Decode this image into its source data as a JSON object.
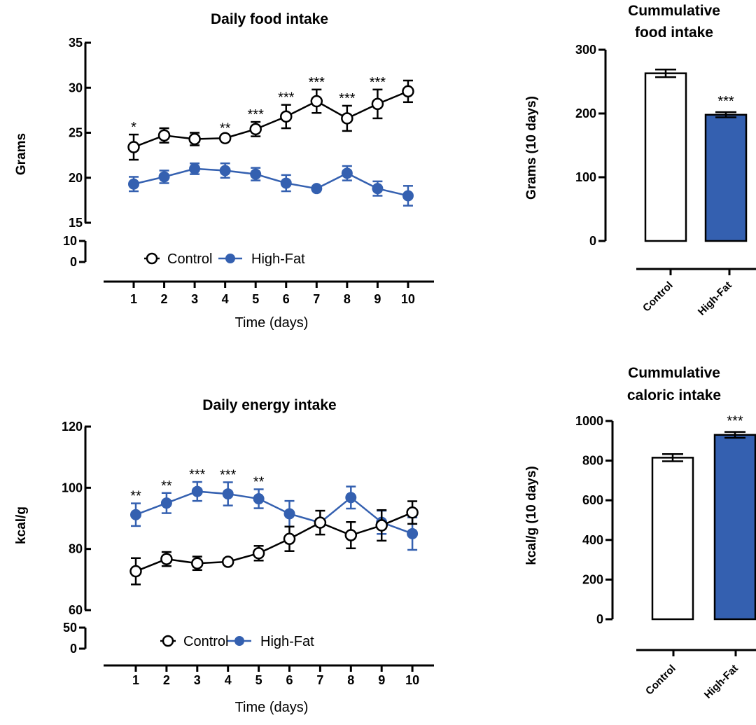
{
  "colors": {
    "control": "#000000",
    "high_fat": "#3460b0",
    "axis": "#000000"
  },
  "chart_data": [
    {
      "type": "line",
      "title": "Daily food intake",
      "xlabel": "Time (days)",
      "ylabel": "Grams",
      "x": [
        1,
        2,
        3,
        4,
        5,
        6,
        7,
        8,
        9,
        10
      ],
      "x_ticks": [
        "1",
        "2",
        "3",
        "4",
        "5",
        "6",
        "7",
        "8",
        "9",
        "10"
      ],
      "y_ticks_main": [
        "15",
        "20",
        "25",
        "30",
        "35"
      ],
      "y_ticks_break": [
        "0",
        "10"
      ],
      "ylim": [
        15,
        35
      ],
      "y_break": [
        0,
        10
      ],
      "series": [
        {
          "name": "Control",
          "marker": "open-circle",
          "values": [
            23.4,
            24.7,
            24.3,
            24.4,
            25.4,
            26.8,
            28.5,
            26.6,
            28.2,
            29.6
          ],
          "errors": [
            1.4,
            0.8,
            0.7,
            0.3,
            0.8,
            1.3,
            1.3,
            1.4,
            1.6,
            1.2
          ]
        },
        {
          "name": "High-Fat",
          "marker": "filled-circle",
          "values": [
            19.3,
            20.1,
            21.0,
            20.8,
            20.4,
            19.4,
            18.8,
            20.5,
            18.8,
            18.0
          ],
          "errors": [
            0.8,
            0.7,
            0.6,
            0.8,
            0.7,
            0.9,
            0.2,
            0.8,
            0.8,
            1.1
          ]
        }
      ],
      "annotations": [
        {
          "x": 1,
          "text": "*"
        },
        {
          "x": 4,
          "text": "**"
        },
        {
          "x": 5,
          "text": "***"
        },
        {
          "x": 6,
          "text": "***"
        },
        {
          "x": 7,
          "text": "***"
        },
        {
          "x": 8,
          "text": "***"
        },
        {
          "x": 9,
          "text": "***"
        }
      ],
      "legend": [
        "Control",
        "High-Fat"
      ],
      "legend_position": "bottom"
    },
    {
      "type": "bar",
      "title": "Cummulative food intake",
      "title_lines": [
        "Cummulative",
        "food intake"
      ],
      "ylabel": "Grams (10 days)",
      "categories": [
        "Control",
        "High-Fat"
      ],
      "values": [
        263,
        198
      ],
      "errors": [
        6,
        4
      ],
      "ylim": [
        0,
        300
      ],
      "y_ticks": [
        "0",
        "100",
        "200",
        "300"
      ],
      "annotations": [
        {
          "category": "High-Fat",
          "text": "***"
        }
      ]
    },
    {
      "type": "line",
      "title": "Daily energy intake",
      "xlabel": "Time (days)",
      "ylabel": "kcal/g",
      "x": [
        1,
        2,
        3,
        4,
        5,
        6,
        7,
        8,
        9,
        10
      ],
      "x_ticks": [
        "1",
        "2",
        "3",
        "4",
        "5",
        "6",
        "7",
        "8",
        "9",
        "10"
      ],
      "y_ticks_main": [
        "60",
        "80",
        "100",
        "120"
      ],
      "y_ticks_break": [
        "0",
        "50"
      ],
      "ylim": [
        60,
        120
      ],
      "y_break": [
        0,
        50
      ],
      "series": [
        {
          "name": "Control",
          "marker": "open-circle",
          "values": [
            72.7,
            76.7,
            75.3,
            75.8,
            78.6,
            83.3,
            88.6,
            84.5,
            87.7,
            91.9
          ],
          "errors": [
            4.3,
            2.3,
            2.2,
            0.6,
            2.4,
            4.0,
            3.9,
            4.3,
            5.0,
            3.7
          ]
        },
        {
          "name": "High-Fat",
          "marker": "filled-circle",
          "values": [
            91.2,
            95.0,
            98.8,
            98.0,
            96.4,
            91.5,
            88.6,
            96.8,
            88.7,
            85.0
          ],
          "errors": [
            3.7,
            3.3,
            3.1,
            3.8,
            3.1,
            4.2,
            1.1,
            3.6,
            3.8,
            5.3
          ]
        }
      ],
      "annotations": [
        {
          "x": 1,
          "text": "**"
        },
        {
          "x": 2,
          "text": "**"
        },
        {
          "x": 3,
          "text": "***"
        },
        {
          "x": 4,
          "text": "***"
        },
        {
          "x": 5,
          "text": "**"
        }
      ],
      "legend": [
        "Control",
        "High-Fat"
      ],
      "legend_position": "bottom"
    },
    {
      "type": "bar",
      "title": "Cummulative caloric intake",
      "title_lines": [
        "Cummulative",
        "caloric intake"
      ],
      "ylabel": "kcal/g (10 days)",
      "categories": [
        "Control",
        "High-Fat"
      ],
      "values": [
        815,
        930
      ],
      "errors": [
        18,
        15
      ],
      "ylim": [
        0,
        1000
      ],
      "y_ticks": [
        "0",
        "200",
        "400",
        "600",
        "800",
        "1000"
      ],
      "annotations": [
        {
          "category": "High-Fat",
          "text": "***"
        }
      ]
    }
  ]
}
